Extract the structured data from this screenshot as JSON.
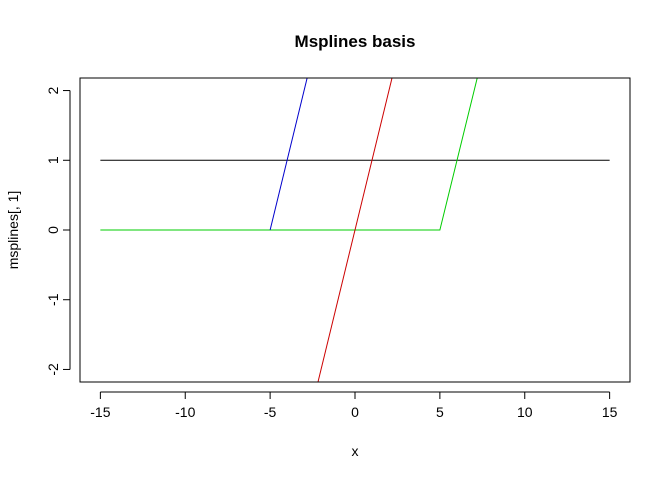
{
  "chart_data": {
    "type": "line",
    "title": "Msplines basis",
    "xlabel": "x",
    "ylabel": "msplines[, 1]",
    "xlim": [
      -16.2,
      16.2
    ],
    "ylim": [
      -2.18,
      2.18
    ],
    "xticks": [
      "-15",
      "-10",
      "-5",
      "0",
      "5",
      "10",
      "15"
    ],
    "yticks": [
      "-2",
      "-1",
      "0",
      "1",
      "2"
    ],
    "xtick_values": [
      -15,
      -10,
      -5,
      0,
      5,
      10,
      15
    ],
    "ytick_values": [
      -2,
      -1,
      0,
      1,
      2
    ],
    "grid": false,
    "series": [
      {
        "color": "#000000",
        "x": [
          -15,
          15
        ],
        "y": [
          1,
          1
        ]
      },
      {
        "color": "#00cc00",
        "x": [
          -15,
          5,
          7.2
        ],
        "y": [
          0,
          0,
          2.18
        ]
      },
      {
        "color": "#0000cc",
        "x": [
          -5,
          -2.82
        ],
        "y": [
          0,
          2.18
        ]
      },
      {
        "color": "#cc0000",
        "x": [
          -2.18,
          2.18
        ],
        "y": [
          -2.18,
          2.18
        ]
      }
    ]
  }
}
